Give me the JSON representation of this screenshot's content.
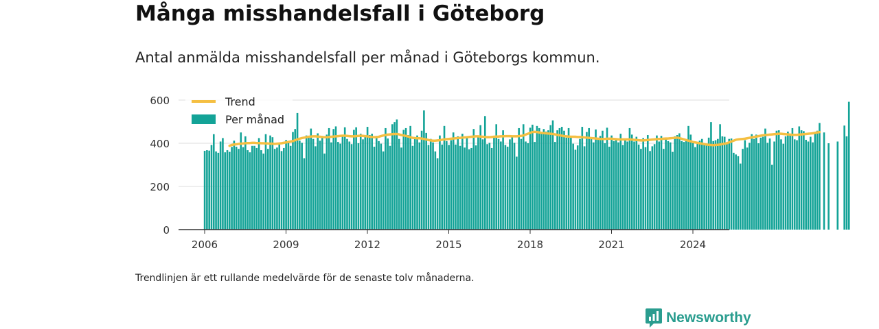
{
  "title": "Många misshandelsfall i Göteborg",
  "subtitle": "Antal anmälda misshandelsfall per månad i Göteborgs kommun.",
  "note": "Trendlinjen är ett rullande medelvärde för de senaste tolv månaderna.",
  "brand": {
    "name": "Newsworthy"
  },
  "colors": {
    "bars": "#13a397",
    "trend": "#f5bf42",
    "axis": "#333333",
    "grid": "#dddddd"
  },
  "chart_data": {
    "type": "bar",
    "ylim": [
      0,
      640
    ],
    "yticks": [
      0,
      200,
      400,
      600
    ],
    "xticks": [
      "2006",
      "2009",
      "2012",
      "2015",
      "2018",
      "2021",
      "2024"
    ],
    "legend": {
      "position": "top-left",
      "trend": "Trend",
      "bars": "Per månad"
    },
    "start": "2006-01",
    "series": [
      {
        "name": "Per månad",
        "values": [
          365,
          368,
          366,
          392,
          442,
          362,
          356,
          408,
          424,
          358,
          368,
          360,
          383,
          412,
          384,
          374,
          450,
          382,
          432,
          368,
          358,
          388,
          388,
          378,
          424,
          368,
          352,
          442,
          374,
          436,
          428,
          374,
          380,
          398,
          364,
          378,
          415,
          406,
          388,
          452,
          466,
          540,
          412,
          402,
          330,
          436,
          430,
          468,
          420,
          386,
          446,
          412,
          424,
          352,
          440,
          470,
          404,
          466,
          478,
          406,
          398,
          432,
          474,
          420,
          408,
          396,
          462,
          474,
          400,
          444,
          418,
          436,
          476,
          438,
          444,
          384,
          434,
          410,
          398,
          362,
          470,
          422,
          388,
          488,
          498,
          510,
          420,
          380,
          462,
          470,
          438,
          480,
          388,
          420,
          436,
          404,
          458,
          552,
          448,
          392,
          420,
          404,
          362,
          330,
          436,
          394,
          480,
          410,
          392,
          414,
          450,
          394,
          432,
          388,
          444,
          380,
          424,
          372,
          378,
          466,
          390,
          434,
          484,
          418,
          526,
          396,
          402,
          378,
          434,
          488,
          420,
          408,
          460,
          392,
          384,
          418,
          434,
          402,
          338,
          470,
          420,
          488,
          408,
          400,
          472,
          486,
          406,
          480,
          470,
          446,
          466,
          454,
          460,
          484,
          506,
          406,
          460,
          470,
          476,
          458,
          426,
          470,
          428,
          398,
          370,
          390,
          420,
          476,
          386,
          452,
          470,
          424,
          404,
          464,
          424,
          434,
          458,
          400,
          472,
          384,
          436,
          410,
          420,
          404,
          444,
          392,
          414,
          408,
          470,
          440,
          408,
          430,
          394,
          374,
          424,
          382,
          438,
          364,
          386,
          396,
          436,
          408,
          434,
          374,
          422,
          410,
          404,
          360,
          432,
          438,
          446,
          410,
          406,
          410,
          480,
          440,
          400,
          382,
          402,
          412,
          420,
          392,
          396,
          426,
          498,
          410,
          414,
          420,
          488,
          432,
          430,
          402,
          420,
          422,
          356,
          348,
          340,
          306,
          374,
          414,
          380,
          402,
          442,
          420,
          440,
          400,
          426,
          430,
          468,
          402,
          422,
          300,
          408,
          458,
          460,
          418,
          398,
          432,
          454,
          444,
          470,
          418,
          414,
          478,
          460,
          456,
          416,
          408,
          430,
          404,
          452,
          458,
          494,
          0,
          450,
          0,
          400,
          0,
          0,
          0,
          408,
          0,
          0,
          482,
          432,
          592
        ]
      },
      {
        "name": "Trend",
        "values": [
          388,
          392,
          394,
          395,
          397,
          398,
          399,
          400,
          401,
          401,
          402,
          402,
          401,
          401,
          400,
          400,
          399,
          399,
          398,
          398,
          397,
          398,
          399,
          400,
          402,
          404,
          406,
          408,
          410,
          414,
          418,
          421,
          424,
          426,
          428,
          430,
          431,
          432,
          432,
          431,
          430,
          429,
          428,
          428,
          429,
          430,
          431,
          432,
          433,
          434,
          435,
          435,
          434,
          433,
          432,
          432,
          433,
          434,
          435,
          434,
          433,
          432,
          430,
          429,
          428,
          428,
          430,
          433,
          436,
          438,
          440,
          441,
          442,
          443,
          443,
          441,
          438,
          436,
          434,
          431,
          428,
          425,
          424,
          423,
          423,
          422,
          420,
          418,
          415,
          413,
          412,
          412,
          413,
          414,
          416,
          418,
          419,
          420,
          421,
          422,
          423,
          424,
          425,
          426,
          427,
          428,
          429,
          430,
          431,
          432,
          432,
          431,
          430,
          429,
          428,
          428,
          429,
          430,
          431,
          431,
          432,
          432,
          433,
          433,
          433,
          432,
          432,
          432,
          433,
          434,
          436,
          440,
          444,
          448,
          452,
          453,
          452,
          450,
          448,
          447,
          446,
          445,
          444,
          443,
          441,
          439,
          437,
          435,
          433,
          432,
          431,
          430,
          430,
          430,
          429,
          429,
          428,
          427,
          426,
          425,
          424,
          423,
          422,
          421,
          420,
          420,
          420,
          421,
          421,
          421,
          420,
          419,
          418,
          418,
          418,
          418,
          418,
          418,
          417,
          416,
          415,
          414,
          413,
          413,
          414,
          415,
          416,
          417,
          418,
          419,
          420,
          420,
          421,
          422,
          422,
          423,
          424,
          425,
          426,
          424,
          421,
          418,
          415,
          412,
          409,
          406,
          404,
          402,
          400,
          398,
          396,
          394,
          393,
          392,
          391,
          392,
          393,
          394,
          396,
          398,
          400,
          404,
          408,
          412,
          416,
          418,
          419,
          420,
          421,
          423,
          425,
          427,
          429,
          431,
          433,
          435,
          437,
          438,
          439,
          440,
          441,
          442,
          443,
          444,
          444,
          443,
          442,
          441,
          440,
          439,
          439,
          439,
          440,
          441,
          442,
          443,
          444,
          445,
          446,
          448,
          450,
          452
        ]
      }
    ]
  }
}
